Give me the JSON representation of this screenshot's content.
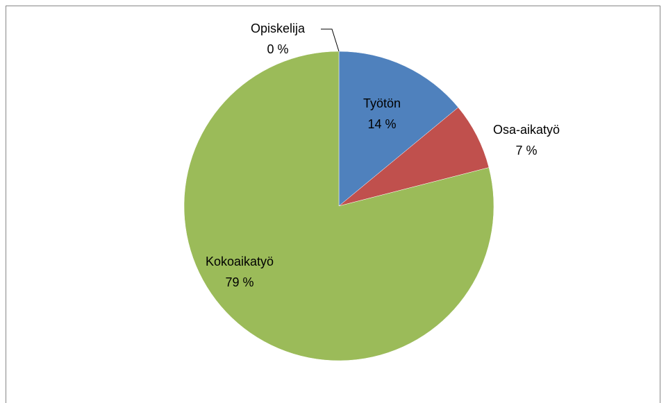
{
  "chart_data": {
    "type": "pie",
    "categories": [
      "Työtön",
      "Osa-aikatyö",
      "Kokoaikatyö",
      "Opiskelija"
    ],
    "values": [
      14,
      7,
      79,
      0
    ],
    "value_labels": [
      "14 %",
      "7 %",
      "79 %",
      "0 %"
    ],
    "colors": [
      "#4f81bd",
      "#c0504d",
      "#9bbb59",
      "#8064a2"
    ]
  }
}
